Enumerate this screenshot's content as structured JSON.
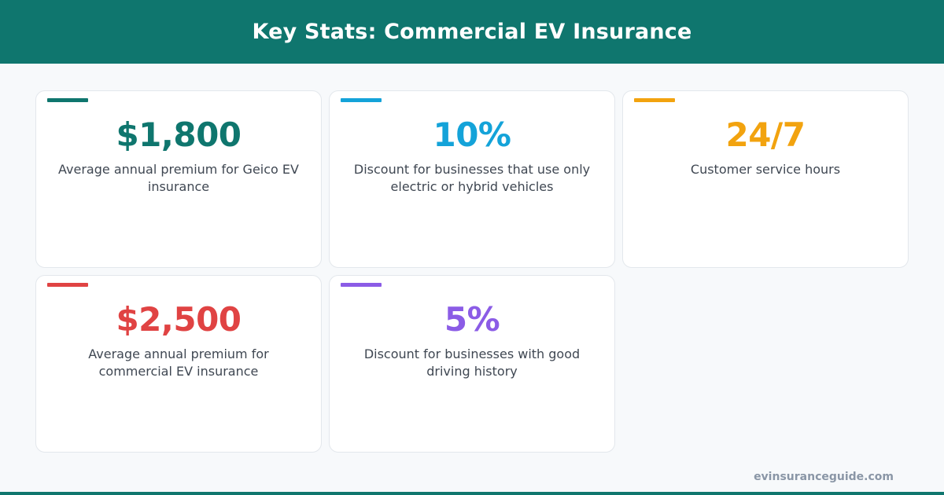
{
  "header": {
    "title": "Key Stats: Commercial EV Insurance"
  },
  "cards": [
    {
      "value": "$1,800",
      "description": "Average annual premium for Geico EV insurance",
      "color": "#0f766e"
    },
    {
      "value": "10%",
      "description": "Discount for businesses that use only electric or hybrid vehicles",
      "color": "#14a3d9"
    },
    {
      "value": "24/7",
      "description": "Customer service hours",
      "color": "#f2a30f"
    },
    {
      "value": "$2,500",
      "description": "Average annual premium for commercial EV insurance",
      "color": "#e04343"
    },
    {
      "value": "5%",
      "description": "Discount for businesses with good driving history",
      "color": "#8b5ce6"
    }
  ],
  "footer": {
    "site": "evinsuranceguide.com"
  },
  "colors": {
    "brand": "#0f766e",
    "background": "#f7f9fb"
  }
}
